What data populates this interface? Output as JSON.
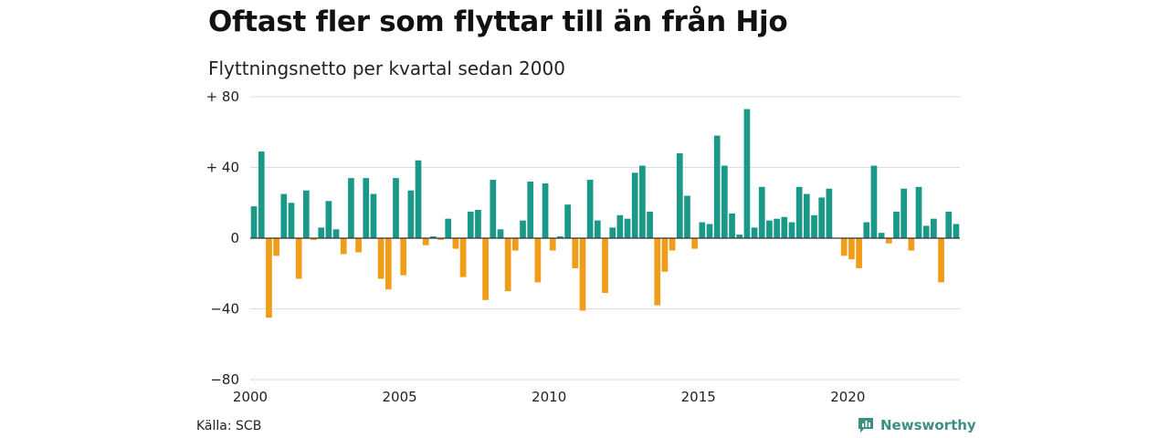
{
  "title": "Oftast fler som flyttar till än från Hjo",
  "subtitle": "Flyttningsnetto per kvartal sedan 2000",
  "source": "Källa: SCB",
  "brand": "Newsworthy",
  "colors": {
    "positive": "#1a9988",
    "negative": "#f29d1a",
    "grid": "#dddddd",
    "brand": "#3d8f82"
  },
  "chart_data": {
    "type": "bar",
    "x_start": "2000 Q1",
    "ylim": [
      -80,
      80
    ],
    "yticks": [
      {
        "value": 80,
        "label": "+ 80"
      },
      {
        "value": 40,
        "label": "+ 40"
      },
      {
        "value": 0,
        "label": "0"
      },
      {
        "value": -40,
        "label": "−40"
      },
      {
        "value": -80,
        "label": "−80"
      }
    ],
    "xticks": [
      "2000",
      "2005",
      "2010",
      "2015",
      "2020"
    ],
    "values": [
      18,
      49,
      -45,
      -10,
      25,
      20,
      -23,
      27,
      -1,
      6,
      21,
      5,
      -9,
      34,
      -8,
      34,
      25,
      -23,
      -29,
      34,
      -21,
      27,
      44,
      -4,
      1,
      -1,
      11,
      -6,
      -22,
      15,
      16,
      -35,
      33,
      5,
      -30,
      -7,
      10,
      32,
      -25,
      31,
      -7,
      1,
      19,
      -17,
      -41,
      33,
      10,
      -31,
      6,
      13,
      11,
      37,
      41,
      15,
      -38,
      -19,
      -7,
      48,
      24,
      -6,
      9,
      8,
      58,
      41,
      14,
      2,
      73,
      6,
      29,
      10,
      11,
      12,
      9,
      29,
      25,
      13,
      23,
      28,
      0,
      -10,
      -12,
      -17,
      9,
      41,
      3,
      -3,
      15,
      28,
      -7,
      29,
      7,
      11,
      -25,
      15,
      8
    ]
  }
}
